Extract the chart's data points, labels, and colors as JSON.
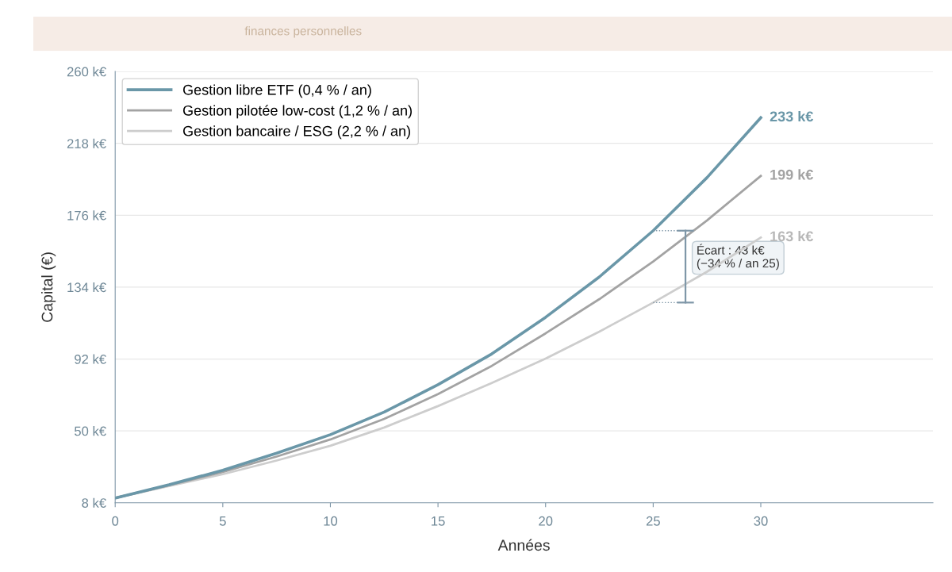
{
  "chart_data": {
    "type": "line",
    "subtitle": "finances personnelles",
    "xlabel": "Années",
    "ylabel": "Capital (€)",
    "x": [
      0,
      2.5,
      5,
      7.5,
      10,
      12.5,
      15,
      17.5,
      20,
      22.5,
      25,
      27.5,
      30
    ],
    "series": [
      {
        "name": "Gestion libre ETF (0,4 % / an)",
        "color": "#6a97a8",
        "values": [
          10.8,
          18.5,
          27,
          37,
          47.8,
          61,
          77,
          95,
          116.4,
          140,
          167,
          198,
          233
        ],
        "value_labels": [
          null,
          null,
          null,
          null,
          null,
          null,
          null,
          null,
          null,
          null,
          null,
          null,
          "233 k€"
        ]
      },
      {
        "name": "Gestion pilotée low-cost (1,2 % / an)",
        "color": "#a3a3a3",
        "values": [
          10.8,
          18.2,
          26,
          35,
          45,
          57,
          71.5,
          88,
          107,
          127,
          149,
          173,
          199
        ],
        "value_labels": [
          null,
          null,
          null,
          null,
          null,
          null,
          null,
          null,
          null,
          null,
          null,
          null,
          "199 k€"
        ]
      },
      {
        "name": "Gestion bancaire / ESG (2,2 % / an)",
        "color": "#cdcdcd",
        "values": [
          10.8,
          17.8,
          24.7,
          32.7,
          41.3,
          52,
          64.5,
          78,
          92.3,
          108,
          125,
          143,
          163
        ],
        "value_labels": [
          null,
          null,
          null,
          null,
          null,
          null,
          null,
          null,
          null,
          null,
          null,
          null,
          "163 k€"
        ]
      }
    ],
    "annotations": [
      "Écart : 43 k€\n(−34 % / an 25)"
    ],
    "xlim": [
      0,
      38
    ],
    "xticks": [
      0,
      5,
      10,
      15,
      20,
      25,
      30
    ],
    "ylim": [
      8,
      260
    ],
    "yticks": [
      {
        "value": 8,
        "label": "8 k€"
      },
      {
        "value": 50,
        "label": "50 k€"
      },
      {
        "value": 92,
        "label": "92 k€"
      },
      {
        "value": 134,
        "label": "134 k€"
      },
      {
        "value": 176,
        "label": "176 k€"
      },
      {
        "value": 218,
        "label": "218 k€"
      },
      {
        "value": 260,
        "label": "260 k€"
      }
    ],
    "grid": "y",
    "legend": "top left",
    "line_style": "solid",
    "marker": "none"
  }
}
